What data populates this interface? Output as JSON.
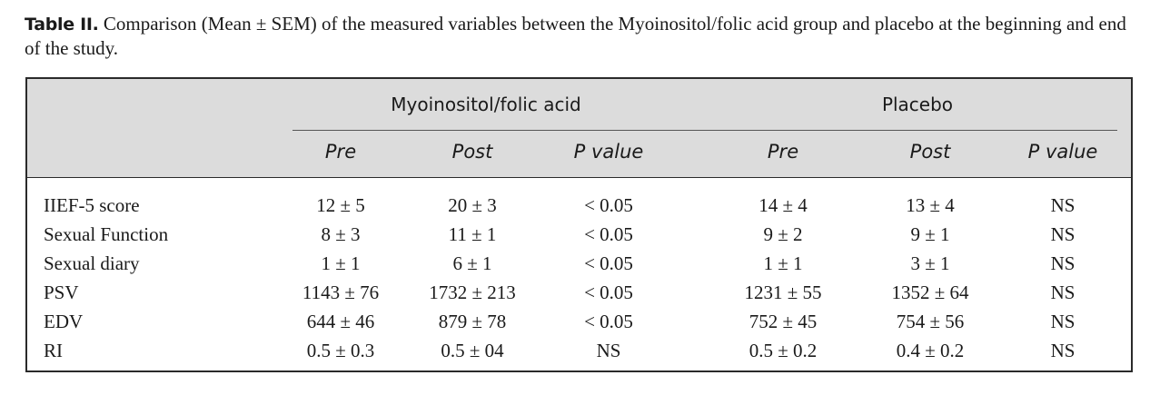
{
  "caption": {
    "label": "Table II.",
    "text": " Comparison (Mean ± SEM) of the measured variables between the Myoinositol/folic acid group and placebo at the begin­ning and end of the study."
  },
  "table": {
    "groups": [
      "Myoinositol/folic acid",
      "Placebo"
    ],
    "subheaders": [
      "Pre",
      "Post",
      "P value",
      "Pre",
      "Post",
      "P value"
    ],
    "rows": [
      {
        "label": "IIEF-5 score",
        "cells": [
          "12 ± 5",
          "20 ± 3",
          "< 0.05",
          "14 ± 4",
          "13 ± 4",
          "NS"
        ]
      },
      {
        "label": "Sexual Function",
        "cells": [
          "8 ± 3",
          "11 ± 1",
          "< 0.05",
          "9 ± 2",
          "9 ± 1",
          "NS"
        ]
      },
      {
        "label": "Sexual diary",
        "cells": [
          "1 ± 1",
          "6 ± 1",
          "< 0.05",
          "1 ± 1",
          "3 ± 1",
          "NS"
        ]
      },
      {
        "label": "PSV",
        "cells": [
          "1143 ± 76",
          "1732 ± 213",
          "< 0.05",
          "1231 ± 55",
          "1352 ± 64",
          "NS"
        ]
      },
      {
        "label": "EDV",
        "cells": [
          "644 ± 46",
          "879 ± 78",
          "< 0.05",
          "752 ± 45",
          "754 ± 56",
          "NS"
        ]
      },
      {
        "label": "RI",
        "cells": [
          "0.5 ± 0.3",
          "0.5 ± 04",
          "NS",
          "0.5 ± 0.2",
          "0.4 ± 0.2",
          "NS"
        ]
      }
    ]
  }
}
